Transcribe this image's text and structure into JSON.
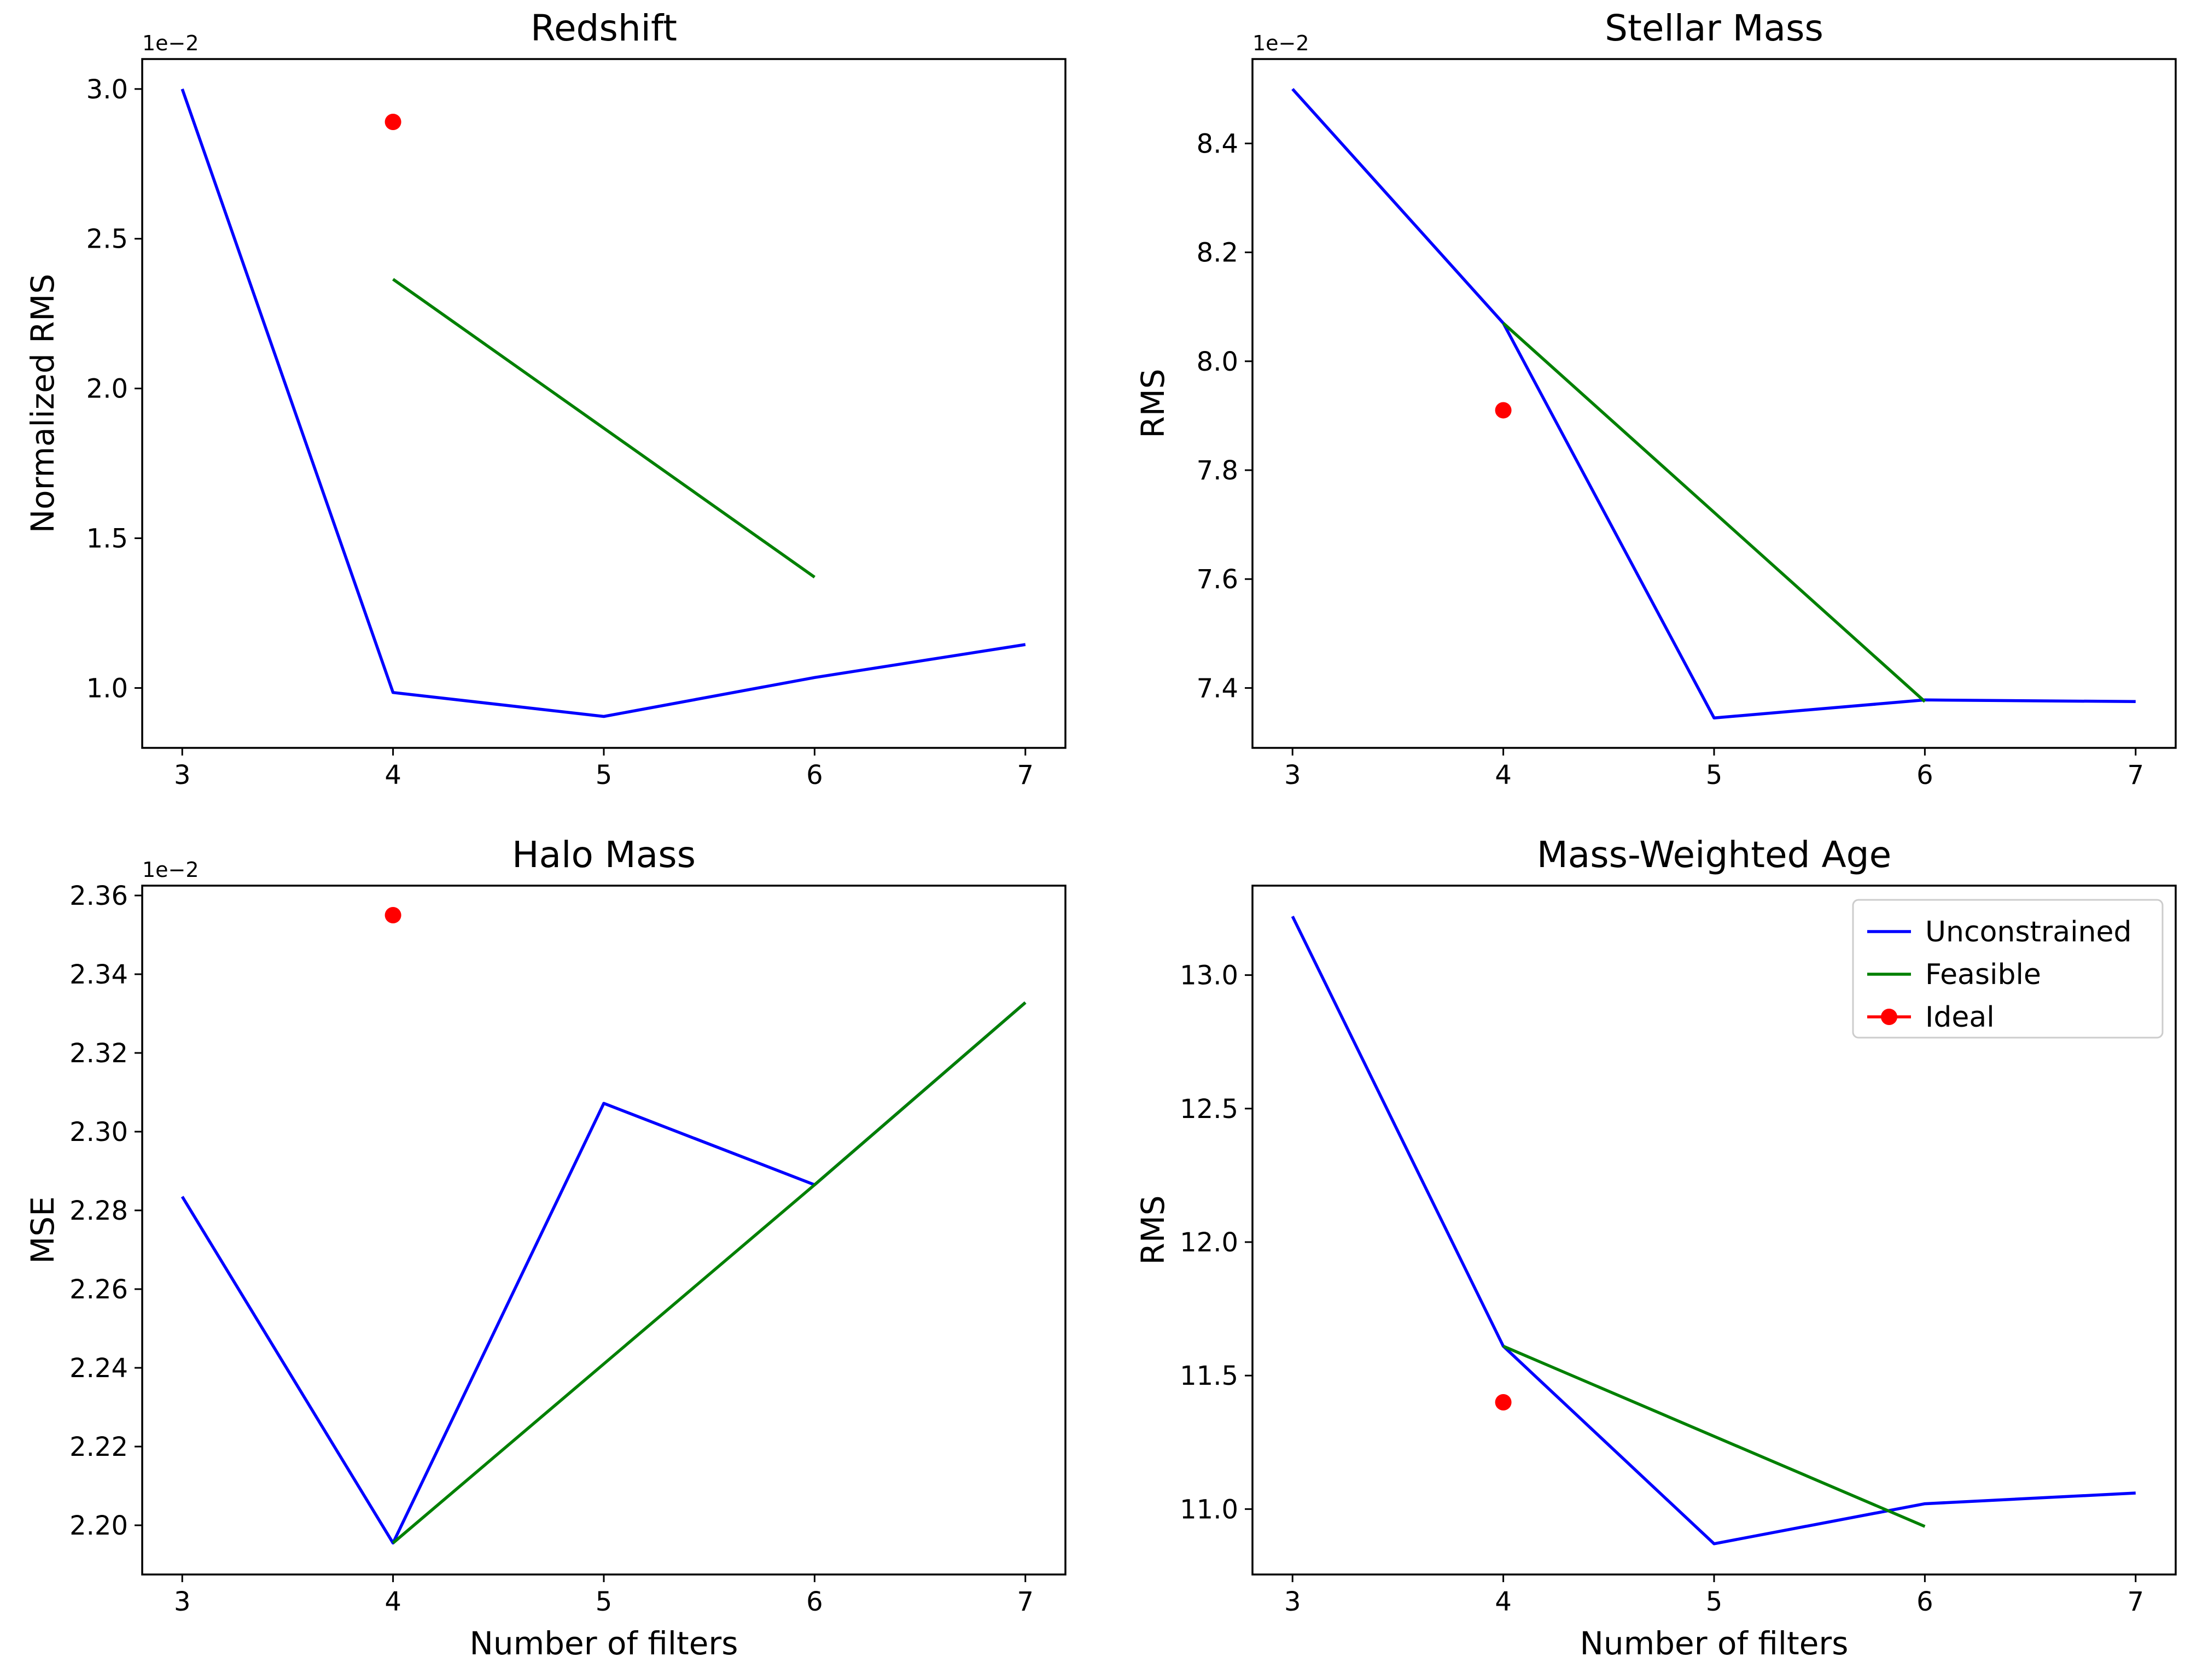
{
  "colors": {
    "unconstrained": "#0000ff",
    "feasible": "#008000",
    "ideal": "#ff0000",
    "axes": "#000000",
    "background": "#ffffff"
  },
  "legend": {
    "panel": "age",
    "placement": "upper-right",
    "entries": [
      {
        "key": "unconstrained",
        "label": "Unconstrained",
        "marker": "line"
      },
      {
        "key": "feasible",
        "label": "Feasible",
        "marker": "line"
      },
      {
        "key": "ideal",
        "label": "Ideal",
        "marker": "line-dot"
      }
    ]
  },
  "chart_data": [
    {
      "id": "redshift",
      "type": "line",
      "title": "Redshift",
      "xlabel": "",
      "ylabel": "Normalized RMS",
      "offset_label": "1e−2",
      "xlim": [
        2.81,
        7.19
      ],
      "ylim": [
        0.8,
        3.1
      ],
      "xticks": [
        3,
        4,
        5,
        6,
        7
      ],
      "yticks": [
        1.0,
        1.5,
        2.0,
        2.5,
        3.0
      ],
      "ytick_labels": [
        "1.0",
        "1.5",
        "2.0",
        "2.5",
        "3.0"
      ],
      "series": [
        {
          "name": "Unconstrained",
          "key": "unconstrained",
          "x": [
            3,
            4,
            5,
            6,
            7
          ],
          "y": [
            3.0,
            0.985,
            0.905,
            1.035,
            1.145
          ]
        },
        {
          "name": "Feasible",
          "key": "feasible",
          "x": [
            4,
            6
          ],
          "y": [
            2.365,
            1.37
          ]
        },
        {
          "name": "Ideal",
          "key": "ideal",
          "x": [
            4
          ],
          "y": [
            2.89
          ],
          "style": "point"
        }
      ]
    },
    {
      "id": "stellar",
      "type": "line",
      "title": "Stellar Mass",
      "xlabel": "",
      "ylabel": "RMS",
      "offset_label": "1e−2",
      "xlim": [
        2.81,
        7.19
      ],
      "ylim": [
        7.29,
        8.555
      ],
      "xticks": [
        3,
        4,
        5,
        6,
        7
      ],
      "yticks": [
        7.4,
        7.6,
        7.8,
        8.0,
        8.2,
        8.4
      ],
      "ytick_labels": [
        "7.4",
        "7.6",
        "7.8",
        "8.0",
        "8.2",
        "8.4"
      ],
      "series": [
        {
          "name": "Unconstrained",
          "key": "unconstrained",
          "x": [
            3,
            4,
            5,
            6,
            7
          ],
          "y": [
            8.5,
            8.07,
            7.345,
            7.378,
            7.375
          ]
        },
        {
          "name": "Feasible",
          "key": "feasible",
          "x": [
            4,
            6
          ],
          "y": [
            8.07,
            7.375
          ]
        },
        {
          "name": "Ideal",
          "key": "ideal",
          "x": [
            4
          ],
          "y": [
            7.91
          ],
          "style": "point"
        }
      ]
    },
    {
      "id": "halo",
      "type": "line",
      "title": "Halo Mass",
      "xlabel": "Number of filters",
      "ylabel": "MSE",
      "offset_label": "1e−2",
      "xlim": [
        2.81,
        7.19
      ],
      "ylim": [
        2.1875,
        2.3625
      ],
      "xticks": [
        3,
        4,
        5,
        6,
        7
      ],
      "yticks": [
        2.2,
        2.22,
        2.24,
        2.26,
        2.28,
        2.3,
        2.32,
        2.34,
        2.36
      ],
      "ytick_labels": [
        "2.20",
        "2.22",
        "2.24",
        "2.26",
        "2.28",
        "2.30",
        "2.32",
        "2.34",
        "2.36"
      ],
      "series": [
        {
          "name": "Unconstrained",
          "key": "unconstrained",
          "x": [
            3,
            4,
            5,
            6,
            7
          ],
          "y": [
            2.2835,
            2.1955,
            2.3072,
            2.2865,
            2.3328
          ]
        },
        {
          "name": "Feasible",
          "key": "feasible",
          "x": [
            4,
            6,
            7
          ],
          "y": [
            2.1955,
            2.2865,
            2.3328
          ]
        },
        {
          "name": "Ideal",
          "key": "ideal",
          "x": [
            4
          ],
          "y": [
            2.355
          ],
          "style": "point"
        }
      ]
    },
    {
      "id": "age",
      "type": "line",
      "title": "Mass-Weighted Age",
      "xlabel": "Number of filters",
      "ylabel": "RMS",
      "offset_label": "",
      "xlim": [
        2.81,
        7.19
      ],
      "ylim": [
        10.755,
        13.335
      ],
      "xticks": [
        3,
        4,
        5,
        6,
        7
      ],
      "yticks": [
        11.0,
        11.5,
        12.0,
        12.5,
        13.0
      ],
      "ytick_labels": [
        "11.0",
        "11.5",
        "12.0",
        "12.5",
        "13.0"
      ],
      "series": [
        {
          "name": "Unconstrained",
          "key": "unconstrained",
          "x": [
            3,
            4,
            5,
            6,
            7
          ],
          "y": [
            13.22,
            11.61,
            10.87,
            11.02,
            11.06
          ]
        },
        {
          "name": "Feasible",
          "key": "feasible",
          "x": [
            4,
            6
          ],
          "y": [
            11.61,
            10.935
          ]
        },
        {
          "name": "Ideal",
          "key": "ideal",
          "x": [
            4
          ],
          "y": [
            11.4
          ],
          "style": "point"
        }
      ]
    }
  ]
}
